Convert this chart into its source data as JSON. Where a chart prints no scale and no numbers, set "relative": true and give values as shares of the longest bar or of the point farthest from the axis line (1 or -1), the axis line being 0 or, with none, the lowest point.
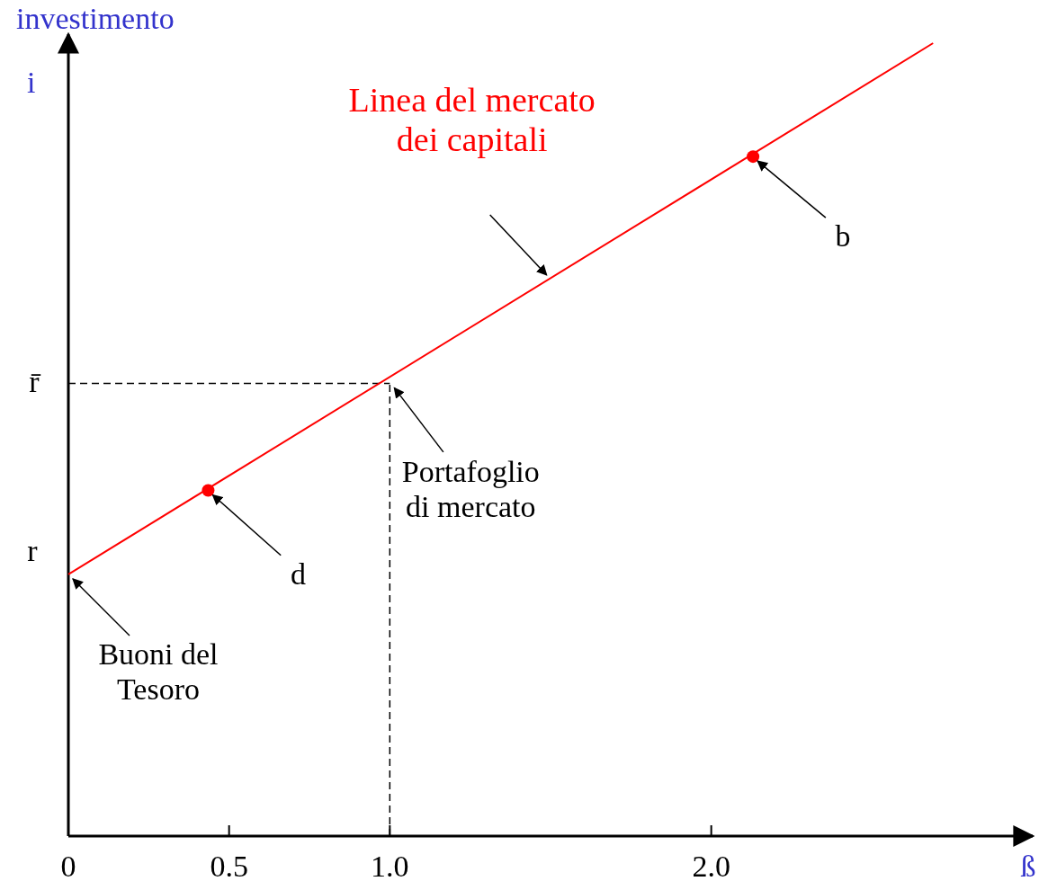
{
  "chart_data": {
    "type": "line",
    "relative": true,
    "xlabel": "ß",
    "ylabel": "investimento\ni",
    "xlim": [
      0,
      3
    ],
    "xticks": [
      0,
      0.5,
      {
        "value": 1,
        "label": "1.0"
      },
      {
        "value": 2,
        "label": "2.0"
      }
    ],
    "series": [
      {
        "color": "#ff0000",
        "x": [
          0,
          2.69
        ],
        "values": [
          0.33,
          1
        ]
      },
      {
        "type": "scatter",
        "color": "#ff0000",
        "x": [
          0.435,
          2.13
        ],
        "values": [
          0.436,
          0.857
        ],
        "marker": "circle"
      }
    ],
    "ref_lines": [
      {
        "axis": "y",
        "value": 0.571,
        "label": "r̄",
        "line_style": "dashed"
      },
      {
        "axis": "x",
        "value": 1,
        "line_style": "dashed"
      }
    ],
    "annotations": [
      "Linea del mercato\ndei capitali",
      {
        "text": "b",
        "x": 2.13,
        "y": 0.857
      },
      {
        "text": "Portafoglio\ndi mercato",
        "x": 1,
        "y": 0.571
      },
      {
        "text": "d",
        "x": 0.435,
        "y": 0.436
      },
      {
        "text": "r",
        "x": 0,
        "y": 0.33
      },
      {
        "text": "Buoni del\nTesoro",
        "x": 0,
        "y": 0.33
      }
    ]
  }
}
